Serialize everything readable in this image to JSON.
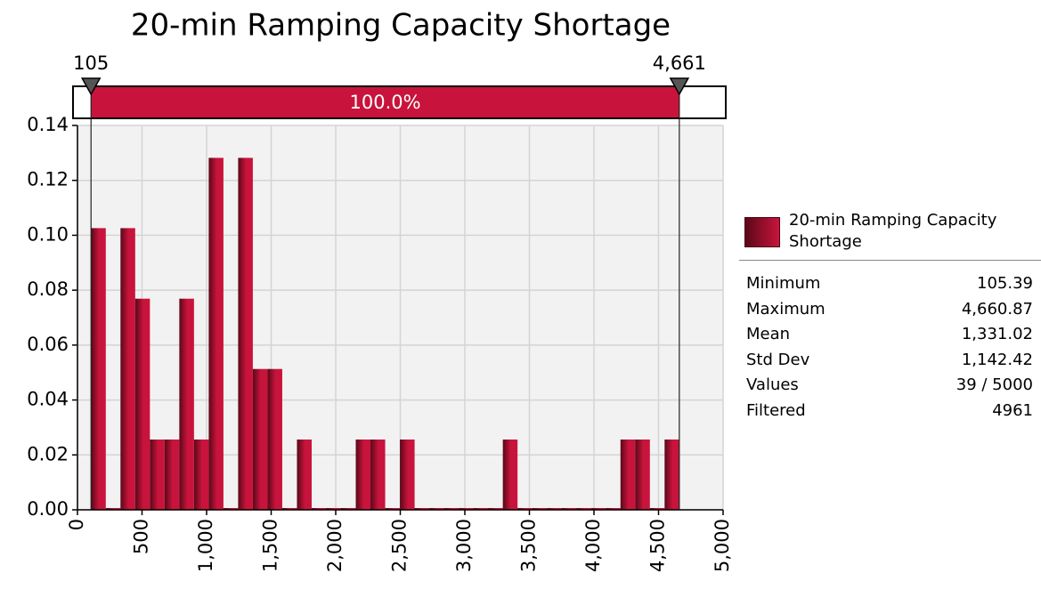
{
  "chart_data": {
    "type": "histogram",
    "title": "20-min Ramping Capacity Shortage",
    "bins": [
      105.39,
      219.28,
      333.16,
      447.05,
      560.94,
      674.82,
      788.71,
      902.6,
      1016.49,
      1130.37,
      1244.26,
      1358.15,
      1472.03,
      1585.92,
      1699.81,
      1813.7,
      1927.58,
      2041.47,
      2155.36,
      2269.24,
      2383.13,
      2497.02,
      2610.9,
      2724.79,
      2838.68,
      2952.57,
      3066.45,
      3180.34,
      3294.23,
      3408.11,
      3522.0,
      3635.89,
      3749.77,
      3863.66,
      3977.55,
      4091.44,
      4205.32,
      4319.21,
      4433.1,
      4546.98,
      4660.87
    ],
    "series": [
      {
        "name": "20-min Ramping Capacity Shortage",
        "color": "#c8143c",
        "values": [
          0.1026,
          0,
          0.1026,
          0.0769,
          0.0256,
          0.0256,
          0.0769,
          0.0256,
          0.1282,
          0,
          0.1282,
          0.0513,
          0.0513,
          0,
          0.0256,
          0,
          0,
          0,
          0.0256,
          0.0256,
          0,
          0.0256,
          0,
          0,
          0,
          0,
          0,
          0,
          0.0256,
          0,
          0,
          0,
          0,
          0,
          0,
          0,
          0.0256,
          0.0256,
          0,
          0.0256
        ]
      }
    ],
    "xlim": [
      0,
      5000
    ],
    "xticks": [
      0,
      500,
      {
        "value": 1000,
        "label": "1,000"
      },
      {
        "value": 1500,
        "label": "1,500"
      },
      {
        "value": 2000,
        "label": "2,000"
      },
      {
        "value": 2500,
        "label": "2,500"
      },
      {
        "value": 3000,
        "label": "3,000"
      },
      {
        "value": 3500,
        "label": "3,500"
      },
      {
        "value": 4000,
        "label": "4,000"
      },
      {
        "value": 4500,
        "label": "4,500"
      },
      {
        "value": 5000,
        "label": "5,000"
      }
    ],
    "ylim": [
      0,
      0.14
    ],
    "yticks": [
      {
        "value": 0,
        "label": "0.00"
      },
      {
        "value": 0.02,
        "label": "0.02"
      },
      {
        "value": 0.04,
        "label": "0.04"
      },
      {
        "value": 0.06,
        "label": "0.06"
      },
      {
        "value": 0.08,
        "label": "0.08"
      },
      {
        "value": 0.1,
        "label": "0.10"
      },
      {
        "value": 0.12,
        "label": "0.12"
      },
      {
        "value": 0.14,
        "label": "0.14"
      }
    ],
    "grid": true,
    "delimiters": [
      {
        "value": 105,
        "label": "105"
      },
      {
        "value": 4661,
        "label": "4,661"
      }
    ],
    "band_label": "100.0%",
    "stats": [
      [
        "Minimum",
        "105.39"
      ],
      [
        "Maximum",
        "4,660.87"
      ],
      [
        "Mean",
        "1,331.02"
      ],
      [
        "Std Dev",
        "1,142.42"
      ],
      [
        "Values",
        "39 / 5000"
      ],
      [
        "Filtered",
        "4961"
      ]
    ]
  }
}
